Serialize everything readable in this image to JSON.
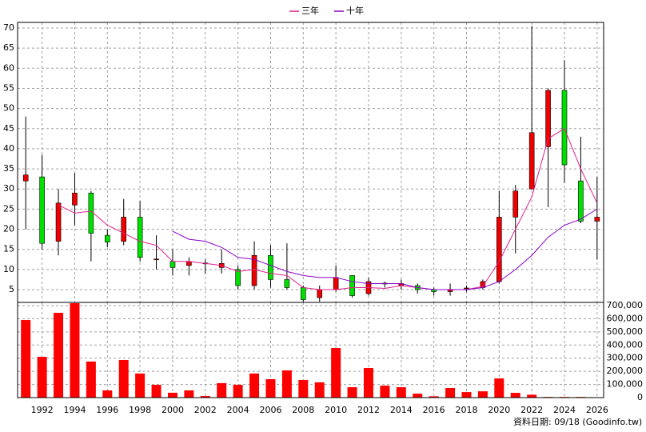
{
  "chart_data": [
    {
      "type": "candlestick",
      "x": [
        1991,
        1992,
        1993,
        1994,
        1995,
        1996,
        1997,
        1998,
        1999,
        2000,
        2001,
        2002,
        2003,
        2004,
        2005,
        2006,
        2007,
        2008,
        2009,
        2010,
        2011,
        2012,
        2013,
        2014,
        2015,
        2016,
        2017,
        2018,
        2019,
        2020,
        2021,
        2022,
        2023,
        2024,
        2025,
        2026
      ],
      "open": [
        32,
        33,
        17,
        26,
        29,
        18.5,
        17,
        23,
        12.5,
        12,
        11,
        11.5,
        10.5,
        10,
        6,
        13.5,
        7.5,
        5.5,
        3,
        5,
        8.5,
        4,
        6.5,
        6,
        6,
        5,
        4.5,
        5.3,
        5.5,
        7,
        23,
        30,
        40.5,
        54.5,
        32,
        22
      ],
      "high": [
        48,
        38.5,
        30,
        34,
        29.5,
        20,
        27.5,
        27,
        18.5,
        15,
        13,
        12.5,
        15,
        11,
        17,
        16,
        16.5,
        6,
        6,
        11,
        8.5,
        8,
        7,
        7.5,
        6.5,
        5.5,
        6.5,
        6,
        7.5,
        29.5,
        31,
        70.5,
        55,
        62,
        43,
        33
      ],
      "low": [
        20,
        15,
        13.5,
        21,
        12,
        15.5,
        16,
        12,
        10,
        8.5,
        8.5,
        9,
        9,
        5,
        5,
        5.5,
        5,
        2,
        2,
        4.5,
        3,
        3.5,
        5.5,
        5,
        4,
        3.5,
        3.5,
        4.5,
        5,
        6.5,
        14,
        30,
        25.5,
        31.5,
        21.5,
        12.5
      ],
      "close": [
        33.5,
        16.5,
        26.5,
        29,
        19,
        16.8,
        23,
        13,
        12.6,
        10.5,
        12,
        11.6,
        11.5,
        6,
        13.5,
        7.5,
        5.5,
        2.5,
        5,
        8,
        3.5,
        7,
        6.6,
        6.5,
        5,
        4.5,
        5,
        5.4,
        7,
        23,
        29.5,
        44,
        54.5,
        36,
        22,
        23
      ],
      "up_color": "#ee0000",
      "down_color": "#00e000",
      "series": [
        {
          "name": "三年",
          "color": "#e0208c",
          "values": [
            null,
            null,
            26,
            24,
            24.5,
            21,
            19,
            17,
            16,
            12,
            12,
            11.5,
            11,
            9.5,
            10,
            9,
            8.5,
            5.5,
            5,
            5,
            5.5,
            5.5,
            5.3,
            6,
            5.5,
            5,
            5,
            5,
            5.8,
            12,
            20,
            28,
            42.5,
            45,
            35,
            26.5
          ]
        },
        {
          "name": "十年",
          "color": "#8a00c8",
          "values": [
            null,
            null,
            null,
            null,
            null,
            null,
            null,
            null,
            null,
            19.5,
            17.5,
            17,
            15.5,
            13,
            12.5,
            11,
            9.5,
            8.5,
            8,
            8,
            7,
            6.5,
            6.5,
            6.5,
            5.5,
            5,
            5,
            5,
            5.5,
            7,
            10,
            13.5,
            18,
            21,
            22.5,
            25
          ]
        }
      ],
      "xlim": [
        1990.5,
        2026.4
      ],
      "ylim": [
        1.82,
        71.39
      ],
      "yticks": [
        5,
        10,
        15,
        20,
        25,
        30,
        35,
        40,
        45,
        50,
        55,
        60,
        65,
        70
      ],
      "grid": true
    },
    {
      "type": "bar",
      "x": [
        1991,
        1992,
        1993,
        1994,
        1995,
        1996,
        1997,
        1998,
        1999,
        2000,
        2001,
        2002,
        2003,
        2004,
        2005,
        2006,
        2007,
        2008,
        2009,
        2010,
        2011,
        2012,
        2013,
        2014,
        2015,
        2016,
        2017,
        2018,
        2019,
        2020,
        2021,
        2022,
        2023,
        2024,
        2025,
        2026
      ],
      "values": [
        590000,
        310000,
        645000,
        718000,
        274000,
        55000,
        286000,
        183000,
        97000,
        37000,
        55000,
        12000,
        110000,
        97000,
        183000,
        140000,
        207000,
        134000,
        116000,
        377000,
        79000,
        225000,
        91000,
        79000,
        30000,
        10000,
        73000,
        42000,
        48000,
        146000,
        36000,
        22000,
        5000,
        5000,
        5000,
        3000
      ],
      "color": "#ff0000",
      "xlim": [
        1990.5,
        2026.4
      ],
      "ylim": [
        0,
        724000
      ],
      "yticks": [
        0,
        {
          "value": 100000,
          "label": "100,000"
        },
        {
          "value": 200000,
          "label": "200,000"
        },
        {
          "value": 300000,
          "label": "300,000"
        },
        {
          "value": 400000,
          "label": "400,000"
        },
        {
          "value": 500000,
          "label": "500,000"
        },
        {
          "value": 600000,
          "label": "600,000"
        },
        {
          "value": 700000,
          "label": "700,000"
        }
      ],
      "xticks": [
        1992,
        1994,
        1996,
        1998,
        2000,
        2002,
        2004,
        2006,
        2008,
        2010,
        2012,
        2014,
        2016,
        2018,
        2020,
        2022,
        2024,
        2026
      ],
      "grid": true
    }
  ],
  "source": "資料日期: 09/18 (Goodinfo.tw)"
}
